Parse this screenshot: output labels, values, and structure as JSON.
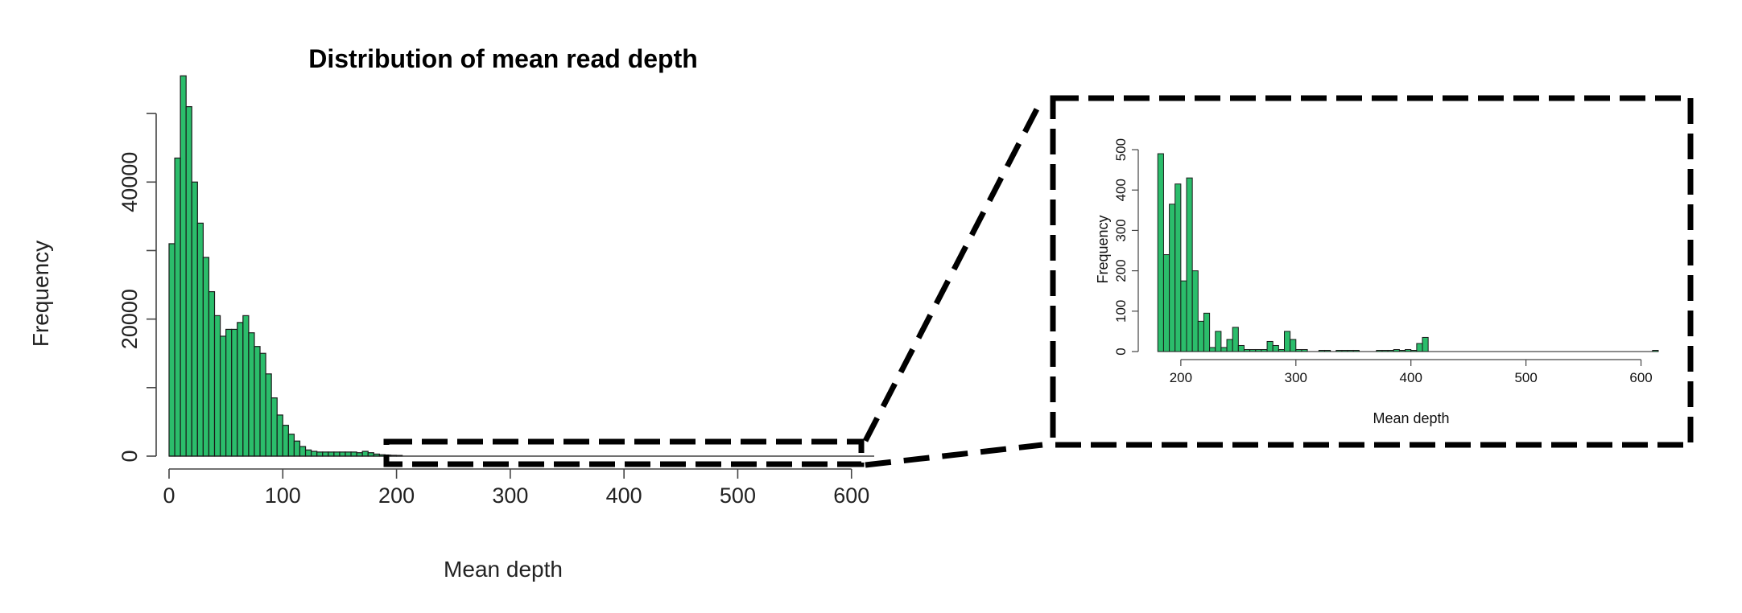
{
  "chart_data": [
    {
      "type": "bar",
      "title": "Distribution of mean read depth",
      "xlabel": "Mean depth",
      "ylabel": "Frequency",
      "xlim": [
        0,
        620
      ],
      "ylim": [
        0,
        56000
      ],
      "x_ticks": [
        0,
        100,
        200,
        300,
        400,
        500,
        600
      ],
      "y_ticks": [
        0,
        10000,
        20000,
        30000,
        40000,
        50000
      ],
      "y_tick_labels": [
        "0",
        "",
        "20000",
        "",
        "40000",
        ""
      ],
      "bin_width": 5,
      "color": "#2bbd6b",
      "bins_start": [
        0,
        5,
        10,
        15,
        20,
        25,
        30,
        35,
        40,
        45,
        50,
        55,
        60,
        65,
        70,
        75,
        80,
        85,
        90,
        95,
        100,
        105,
        110,
        115,
        120,
        125,
        130,
        135,
        140,
        145,
        150,
        155,
        160,
        165,
        170,
        175,
        180,
        185,
        190,
        195,
        200
      ],
      "values": [
        31000,
        43500,
        55500,
        51000,
        40000,
        34000,
        29000,
        24000,
        20500,
        17500,
        18500,
        18500,
        19500,
        20500,
        18000,
        16000,
        15000,
        12000,
        8500,
        6000,
        4500,
        3200,
        2200,
        1400,
        900,
        700,
        600,
        600,
        600,
        600,
        600,
        600,
        600,
        500,
        700,
        500,
        300,
        200,
        150,
        120,
        100
      ]
    },
    {
      "type": "bar",
      "title": "",
      "xlabel": "Mean depth",
      "ylabel": "Frequency",
      "xlim": [
        170,
        615
      ],
      "ylim": [
        0,
        520
      ],
      "x_ticks": [
        200,
        300,
        400,
        500,
        600
      ],
      "y_ticks": [
        0,
        100,
        200,
        300,
        400,
        500
      ],
      "bin_width": 5,
      "color": "#2bbd6b",
      "bins_start": [
        180,
        185,
        190,
        195,
        200,
        205,
        210,
        215,
        220,
        225,
        230,
        235,
        240,
        245,
        250,
        255,
        260,
        265,
        270,
        275,
        280,
        285,
        290,
        295,
        300,
        305,
        310,
        315,
        320,
        325,
        330,
        335,
        340,
        345,
        350,
        355,
        360,
        365,
        370,
        375,
        380,
        385,
        390,
        395,
        400,
        405,
        410,
        415,
        420,
        425,
        430,
        610
      ],
      "values": [
        490,
        240,
        365,
        415,
        175,
        430,
        200,
        75,
        95,
        10,
        50,
        10,
        30,
        60,
        15,
        5,
        5,
        5,
        5,
        25,
        15,
        5,
        50,
        30,
        5,
        5,
        0,
        0,
        3,
        3,
        0,
        3,
        3,
        3,
        3,
        0,
        0,
        0,
        3,
        3,
        3,
        5,
        3,
        5,
        3,
        20,
        35,
        0,
        0,
        0,
        0,
        3
      ]
    }
  ]
}
